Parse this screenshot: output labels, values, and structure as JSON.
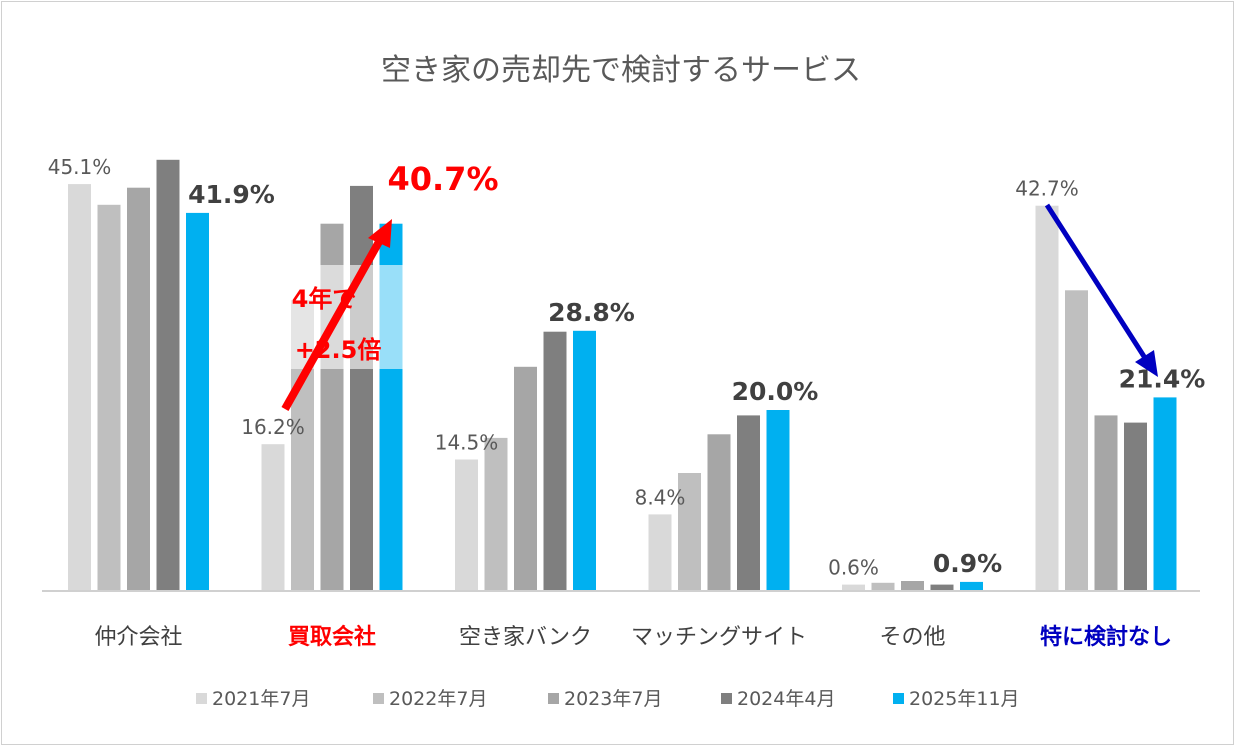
{
  "chart_data": {
    "type": "bar",
    "title": "空き家の売却先で検討するサービス",
    "categories": [
      "仲介会社",
      "買取会社",
      "空き家バンク",
      "マッチングサイト",
      "その他",
      "特に検討なし"
    ],
    "category_colors": [
      "#404040",
      "#ff0000",
      "#404040",
      "#404040",
      "#404040",
      "#0000c0"
    ],
    "category_bold": [
      false,
      true,
      false,
      false,
      false,
      true
    ],
    "ylim": [
      0,
      50
    ],
    "grid": false,
    "legend_position": "bottom",
    "series": [
      {
        "name": "2021年7月",
        "color": "#d9d9d9",
        "values": [
          45.1,
          16.2,
          14.5,
          8.4,
          0.6,
          42.7
        ]
      },
      {
        "name": "2022年7月",
        "color": "#bfbfbf",
        "values": [
          42.8,
          32.2,
          16.9,
          13.0,
          0.8,
          33.3
        ]
      },
      {
        "name": "2023年7月",
        "color": "#a6a6a6",
        "values": [
          44.7,
          40.7,
          24.8,
          17.3,
          1.0,
          19.4
        ]
      },
      {
        "name": "2024年4月",
        "color": "#7f7f7f",
        "values": [
          47.8,
          44.9,
          28.7,
          19.4,
          0.6,
          18.6
        ]
      },
      {
        "name": "2025年11月",
        "color": "#00b0f0",
        "values": [
          41.9,
          40.7,
          28.8,
          20.0,
          0.9,
          21.4
        ]
      }
    ],
    "data_labels_first": [
      "45.1%",
      "16.2%",
      "14.5%",
      "8.4%",
      "0.6%",
      "42.7%"
    ],
    "data_labels_last": [
      "41.9%",
      "40.7%",
      "28.8%",
      "20.0%",
      "0.9%",
      "21.4%"
    ],
    "annotations": {
      "growth_text_line1": "4年で",
      "growth_text_line2": "+2.5倍",
      "growth_color": "#ff0000",
      "decline_arrow_color": "#0000c0"
    }
  }
}
